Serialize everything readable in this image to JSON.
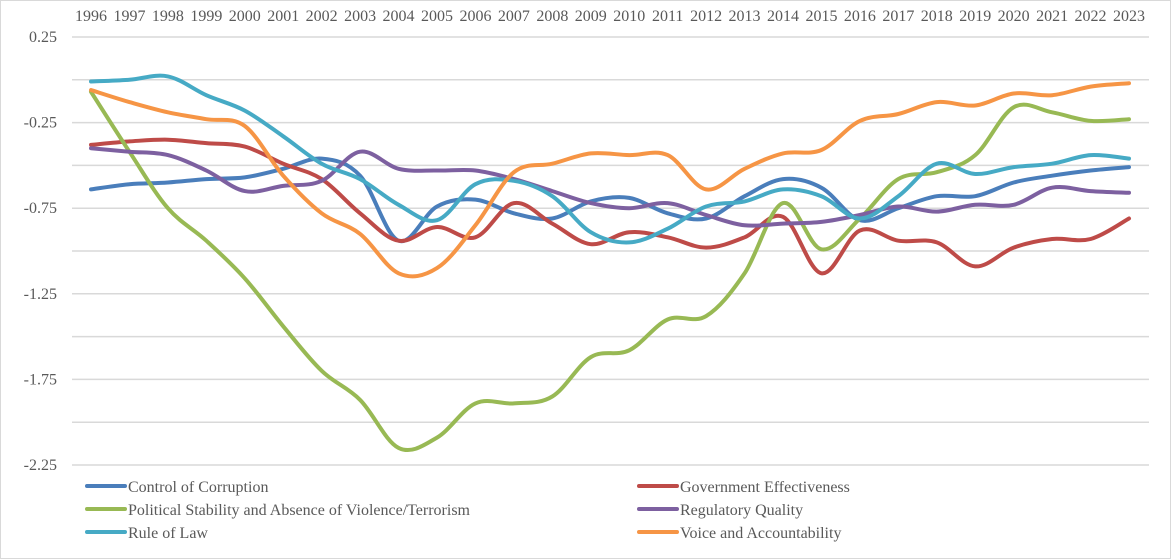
{
  "chart_data": {
    "type": "line",
    "title": "",
    "xlabel": "",
    "ylabel": "",
    "x": [
      "1996",
      "1997",
      "1998",
      "1999",
      "2000",
      "2001",
      "2002",
      "2003",
      "2004",
      "2005",
      "2006",
      "2007",
      "2008",
      "2009",
      "2010",
      "2011",
      "2012",
      "2013",
      "2014",
      "2015",
      "2016",
      "2017",
      "2018",
      "2019",
      "2020",
      "2021",
      "2022",
      "2023"
    ],
    "ylim": [
      -2.25,
      0.25
    ],
    "yticks": [
      "0.25",
      "-0.25",
      "-0.75",
      "-1.25",
      "-1.75",
      "-2.25"
    ],
    "ytick_values": [
      0.25,
      -0.25,
      -0.75,
      -1.25,
      -1.75,
      -2.25
    ],
    "gridlines_at": [
      0.25,
      0,
      -0.25,
      -0.5,
      -0.75,
      -1.0,
      -1.25,
      -1.5,
      -1.75,
      -2.0,
      -2.25
    ],
    "grid": true,
    "smooth": true,
    "x_axis_position": "top",
    "legend_position": "bottom",
    "series": [
      {
        "name": "Control of Corruption",
        "color": "#4a7ebb",
        "values": [
          -0.64,
          -0.61,
          -0.6,
          -0.58,
          -0.57,
          -0.52,
          -0.46,
          -0.56,
          -0.94,
          -0.74,
          -0.7,
          -0.78,
          -0.81,
          -0.71,
          -0.69,
          -0.78,
          -0.81,
          -0.68,
          -0.58,
          -0.63,
          -0.82,
          -0.75,
          -0.68,
          -0.68,
          -0.6,
          -0.56,
          -0.53,
          -0.51
        ]
      },
      {
        "name": "Government Effectiveness",
        "color": "#be4b48",
        "values": [
          -0.38,
          -0.36,
          -0.35,
          -0.37,
          -0.39,
          -0.49,
          -0.58,
          -0.78,
          -0.94,
          -0.86,
          -0.92,
          -0.72,
          -0.84,
          -0.96,
          -0.89,
          -0.92,
          -0.98,
          -0.92,
          -0.8,
          -1.13,
          -0.88,
          -0.94,
          -0.95,
          -1.09,
          -0.98,
          -0.93,
          -0.93,
          -0.81
        ]
      },
      {
        "name": "Political Stability and Absence of Violence/Terrorism",
        "color": "#98b954",
        "values": [
          -0.07,
          -0.42,
          -0.75,
          -0.94,
          -1.16,
          -1.44,
          -1.7,
          -1.87,
          -2.15,
          -2.09,
          -1.89,
          -1.89,
          -1.85,
          -1.62,
          -1.58,
          -1.4,
          -1.38,
          -1.13,
          -0.72,
          -0.99,
          -0.81,
          -0.58,
          -0.54,
          -0.44,
          -0.16,
          -0.19,
          -0.24,
          -0.23
        ]
      },
      {
        "name": "Regulatory Quality",
        "color": "#7d60a0",
        "values": [
          -0.4,
          -0.42,
          -0.44,
          -0.53,
          -0.65,
          -0.62,
          -0.59,
          -0.42,
          -0.52,
          -0.53,
          -0.53,
          -0.58,
          -0.65,
          -0.72,
          -0.75,
          -0.72,
          -0.79,
          -0.85,
          -0.84,
          -0.83,
          -0.79,
          -0.74,
          -0.77,
          -0.73,
          -0.73,
          -0.63,
          -0.65,
          -0.66
        ]
      },
      {
        "name": "Rule of Law",
        "color": "#46aac5",
        "values": [
          -0.01,
          0.0,
          0.02,
          -0.09,
          -0.18,
          -0.33,
          -0.49,
          -0.58,
          -0.73,
          -0.82,
          -0.61,
          -0.59,
          -0.68,
          -0.89,
          -0.95,
          -0.87,
          -0.74,
          -0.71,
          -0.64,
          -0.68,
          -0.81,
          -0.68,
          -0.49,
          -0.55,
          -0.51,
          -0.49,
          -0.44,
          -0.46
        ]
      },
      {
        "name": "Voice and Accountability",
        "color": "#f69545",
        "values": [
          -0.06,
          -0.13,
          -0.19,
          -0.23,
          -0.27,
          -0.56,
          -0.78,
          -0.9,
          -1.13,
          -1.1,
          -0.85,
          -0.54,
          -0.49,
          -0.43,
          -0.44,
          -0.44,
          -0.64,
          -0.52,
          -0.43,
          -0.41,
          -0.24,
          -0.2,
          -0.13,
          -0.15,
          -0.08,
          -0.09,
          -0.04,
          -0.02
        ]
      }
    ]
  }
}
